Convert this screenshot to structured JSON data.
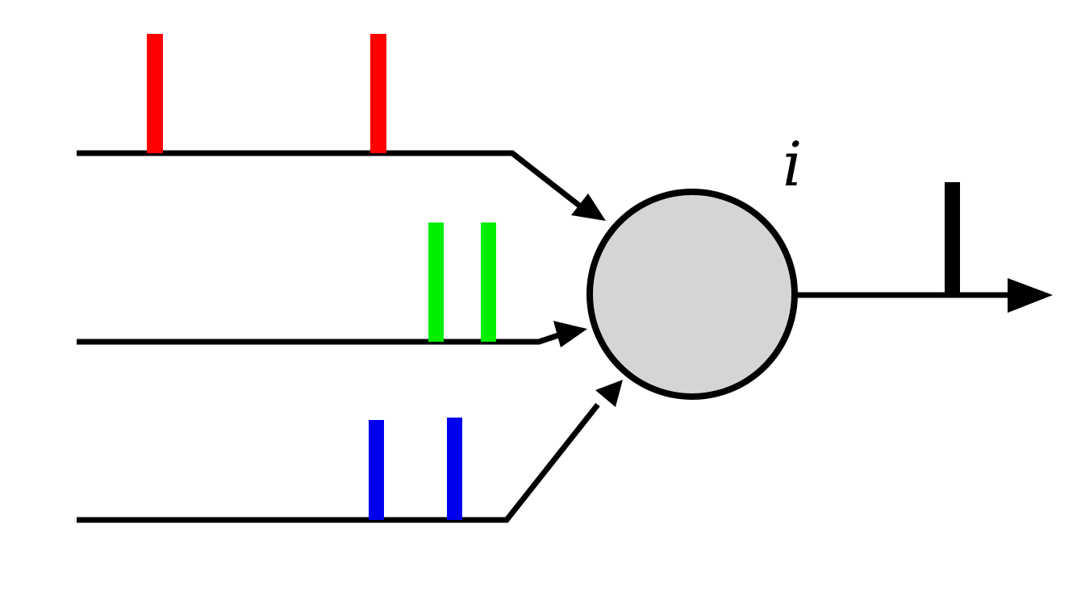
{
  "neuron": {
    "label": "i",
    "fill_color": "#d4d5d6",
    "stroke_color": "#000000"
  },
  "inputs": [
    {
      "name": "red-input",
      "color": "#ff0000",
      "spike_count": 2
    },
    {
      "name": "green-input",
      "color": "#00ee00",
      "spike_count": 2
    },
    {
      "name": "blue-input",
      "color": "#0000ee",
      "spike_count": 2
    }
  ],
  "output": {
    "color": "#000000",
    "spike_count": 1
  }
}
